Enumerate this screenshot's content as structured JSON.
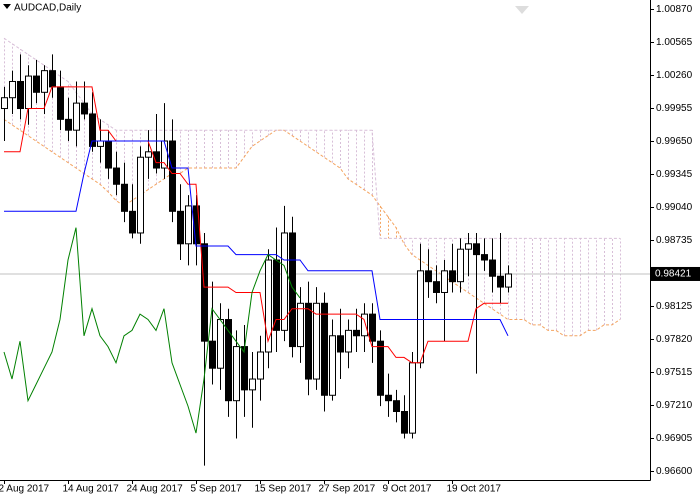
{
  "chart_data": {
    "type": "candlestick",
    "title": "AUDCAD,Daily",
    "ylim": [
      0.96517,
      1.00953
    ],
    "xlim": [
      -0.5,
      80.75
    ],
    "yticks": [
      {
        "value": 1.0087,
        "label": "1.00870"
      },
      {
        "value": 1.00565,
        "label": "1.00565"
      },
      {
        "value": 1.0026,
        "label": "1.00260"
      },
      {
        "value": 0.99955,
        "label": "0.99955"
      },
      {
        "value": 0.9965,
        "label": "0.99650"
      },
      {
        "value": 0.99345,
        "label": "0.99345"
      },
      {
        "value": 0.9904,
        "label": "0.99040"
      },
      {
        "value": 0.98735,
        "label": "0.98735"
      },
      {
        "value": 0.98125,
        "label": "0.98125"
      },
      {
        "value": 0.9782,
        "label": "0.97820"
      },
      {
        "value": 0.97515,
        "label": "0.97515"
      },
      {
        "value": 0.9721,
        "label": "0.97210"
      },
      {
        "value": 0.96905,
        "label": "0.96905"
      },
      {
        "value": 0.966,
        "label": "0.96600"
      }
    ],
    "xticks": [
      {
        "value": 0,
        "label": "2 Aug 2017"
      },
      {
        "value": 8,
        "label": "14 Aug 2017"
      },
      {
        "value": 16,
        "label": "24 Aug 2017"
      },
      {
        "value": 24,
        "label": "5 Sep 2017"
      },
      {
        "value": 32,
        "label": "15 Sep 2017"
      },
      {
        "value": 40,
        "label": "27 Sep 2017"
      },
      {
        "value": 48,
        "label": "9 Oct 2017"
      },
      {
        "value": 56,
        "label": "19 Oct 2017"
      }
    ],
    "current_price": 0.98421,
    "candles": {
      "open": [
        0.9995,
        1.0005,
        1.002,
        0.9995,
        1.0025,
        1.001,
        1.003,
        1.0015,
        0.9985,
        0.9975,
        1.0,
        0.999,
        0.996,
        0.9965,
        0.994,
        0.9925,
        0.99,
        0.988,
        0.995,
        0.9955,
        0.994,
        0.9965,
        0.99,
        0.987,
        0.9905,
        0.987,
        0.978,
        0.9755,
        0.98,
        0.9725,
        0.9775,
        0.9735,
        0.9745,
        0.977,
        0.9855,
        0.979,
        0.988,
        0.9775,
        0.9815,
        0.9745,
        0.9815,
        0.973,
        0.9785,
        0.977,
        0.979,
        0.9785,
        0.9805,
        0.978,
        0.973,
        0.9725,
        0.9715,
        0.9695,
        0.976,
        0.9845,
        0.9835,
        0.9825,
        0.9845,
        0.9835,
        0.9865,
        0.987,
        0.986,
        0.9855,
        0.984,
        0.983
      ],
      "high": [
        1.0015,
        1.003,
        1.0045,
        1.0035,
        1.004,
        1.0035,
        1.0045,
        1.003,
        1.0005,
        1.002,
        1.002,
        1.001,
        0.9985,
        0.9975,
        0.9955,
        0.9945,
        0.9925,
        0.996,
        0.9975,
        0.999,
        1.0,
        0.9985,
        0.9925,
        0.9915,
        0.9915,
        0.988,
        0.9835,
        0.9815,
        0.981,
        0.979,
        0.9795,
        0.977,
        0.9785,
        0.9865,
        0.9885,
        0.9905,
        0.9895,
        0.983,
        0.9835,
        0.983,
        0.9825,
        0.98,
        0.981,
        0.98,
        0.981,
        0.9815,
        0.9815,
        0.979,
        0.975,
        0.9735,
        0.973,
        0.977,
        0.987,
        0.9865,
        0.985,
        0.9855,
        0.987,
        0.9875,
        0.988,
        0.988,
        0.9875,
        0.9875,
        0.988,
        0.985
      ],
      "low": [
        0.9965,
        0.999,
        0.9985,
        0.998,
        1.0,
        0.999,
        1.0005,
        0.9975,
        0.9965,
        0.996,
        0.9985,
        0.9955,
        0.9945,
        0.993,
        0.9915,
        0.989,
        0.9875,
        0.987,
        0.993,
        0.9935,
        0.993,
        0.989,
        0.9855,
        0.985,
        0.985,
        0.9665,
        0.974,
        0.9735,
        0.971,
        0.969,
        0.971,
        0.97,
        0.9725,
        0.9755,
        0.977,
        0.978,
        0.9765,
        0.976,
        0.973,
        0.9735,
        0.9715,
        0.9725,
        0.9745,
        0.9755,
        0.977,
        0.977,
        0.976,
        0.972,
        0.971,
        0.9705,
        0.969,
        0.969,
        0.9755,
        0.982,
        0.9815,
        0.978,
        0.9825,
        0.9825,
        0.984,
        0.975,
        0.9845,
        0.9825,
        0.9815,
        0.9825
      ],
      "close": [
        1.0005,
        1.002,
        0.9995,
        1.0025,
        1.001,
        1.003,
        1.0015,
        0.9985,
        0.9975,
        1.0,
        0.999,
        0.996,
        0.9965,
        0.994,
        0.9925,
        0.99,
        0.988,
        0.995,
        0.9955,
        0.994,
        0.9965,
        0.99,
        0.987,
        0.9905,
        0.987,
        0.978,
        0.9755,
        0.98,
        0.9725,
        0.9775,
        0.9735,
        0.9745,
        0.977,
        0.9855,
        0.979,
        0.988,
        0.9775,
        0.9815,
        0.9745,
        0.9815,
        0.973,
        0.9785,
        0.977,
        0.979,
        0.9785,
        0.9805,
        0.978,
        0.973,
        0.9725,
        0.9715,
        0.9695,
        0.976,
        0.9845,
        0.9835,
        0.9825,
        0.9845,
        0.9835,
        0.9865,
        0.987,
        0.986,
        0.9855,
        0.984,
        0.983,
        0.98421
      ]
    },
    "lines": [
      {
        "color": "#ff0000",
        "values": [
          0.9955,
          0.9955,
          0.9955,
          0.9995,
          0.9995,
          0.9995,
          1.0015,
          1.0015,
          1.0015,
          1.0015,
          1.0015,
          1.0015,
          0.9975,
          0.9975,
          0.9965,
          0.9965,
          0.9965,
          0.9965,
          0.9965,
          0.9945,
          0.9945,
          0.9935,
          0.9935,
          0.9925,
          0.9925,
          0.983,
          0.983,
          0.983,
          0.983,
          0.9825,
          0.9825,
          0.9825,
          0.9825,
          0.978,
          0.98,
          0.98,
          0.981,
          0.981,
          0.981,
          0.9805,
          0.9805,
          0.9805,
          0.9805,
          0.9805,
          0.9805,
          0.98,
          0.9775,
          0.9775,
          0.9775,
          0.9765,
          0.9765,
          0.976,
          0.976,
          0.978,
          0.978,
          0.978,
          0.978,
          0.978,
          0.978,
          0.981,
          0.9815,
          0.9815,
          0.9815,
          0.9815
        ]
      },
      {
        "color": "#0000ff",
        "values": [
          0.99,
          0.99,
          0.99,
          0.99,
          0.99,
          0.99,
          0.99,
          0.99,
          0.99,
          0.99,
          0.9935,
          0.9965,
          0.9965,
          0.9965,
          0.9965,
          0.9965,
          0.9965,
          0.9965,
          0.9965,
          0.9965,
          0.9965,
          0.994,
          0.994,
          0.994,
          0.9868,
          0.9868,
          0.9868,
          0.9868,
          0.9868,
          0.986,
          0.986,
          0.986,
          0.986,
          0.986,
          0.986,
          0.9855,
          0.9855,
          0.9855,
          0.9845,
          0.9845,
          0.9845,
          0.9845,
          0.9845,
          0.9845,
          0.9845,
          0.9845,
          0.9845,
          0.98,
          0.98,
          0.98,
          0.98,
          0.98,
          0.98,
          0.98,
          0.98,
          0.98,
          0.98,
          0.98,
          0.98,
          0.98,
          0.98,
          0.98,
          0.98,
          0.9785
        ]
      },
      {
        "color": "#008000",
        "values": [
          0.977,
          0.9745,
          0.978,
          0.9725,
          0.974,
          0.9755,
          0.977,
          0.98,
          0.9855,
          0.9885,
          0.9785,
          0.981,
          0.9785,
          0.9775,
          0.976,
          0.9785,
          0.979,
          0.9805,
          0.98,
          0.979,
          0.981,
          0.976,
          0.974,
          0.972,
          0.9695,
          0.9745,
          0.981,
          0.98,
          0.979,
          0.978,
          0.977,
          0.9825,
          0.9845,
          0.986,
          0.9855,
          0.985,
          0.983,
          0.982
        ]
      }
    ],
    "cloud": [
      {
        "color": "#f4a460",
        "values": [
          0.9985,
          0.998,
          0.9975,
          0.997,
          0.9965,
          0.996,
          0.9955,
          0.995,
          0.9945,
          0.994,
          0.9935,
          0.993,
          0.9925,
          0.9918,
          0.991,
          0.9905,
          0.991,
          0.9915,
          0.992,
          0.9925,
          0.993,
          0.9935,
          0.9935,
          0.994,
          0.994,
          0.994,
          0.994,
          0.994,
          0.994,
          0.994,
          0.995,
          0.996,
          0.9965,
          0.997,
          0.9975,
          0.9975,
          0.997,
          0.9965,
          0.996,
          0.9955,
          0.995,
          0.9945,
          0.994,
          0.993,
          0.9925,
          0.992,
          0.9915,
          0.9905,
          0.9895,
          0.9885,
          0.987,
          0.986,
          0.9855,
          0.985,
          0.9845,
          0.984,
          0.9835,
          0.983,
          0.9825,
          0.982,
          0.9815,
          0.981,
          0.9805,
          0.98,
          0.98,
          0.98,
          0.9795,
          0.9795,
          0.979,
          0.979,
          0.9785,
          0.9785,
          0.9785,
          0.979,
          0.979,
          0.9795,
          0.9795,
          0.98
        ]
      },
      {
        "color": "#d8bfd8",
        "values": [
          1.006,
          1.0055,
          1.005,
          1.0045,
          1.004,
          1.0035,
          1.003,
          1.0025,
          1.002,
          1.001,
          1.0,
          0.999,
          0.9985,
          0.998,
          0.9975,
          0.9975,
          0.9975,
          0.9975,
          0.9975,
          0.9975,
          0.9975,
          0.9975,
          0.9975,
          0.9975,
          0.9975,
          0.9975,
          0.9975,
          0.9975,
          0.9975,
          0.9975,
          0.9975,
          0.9975,
          0.9975,
          0.9975,
          0.9975,
          0.9975,
          0.9975,
          0.9975,
          0.9975,
          0.9975,
          0.9975,
          0.9975,
          0.9975,
          0.9975,
          0.9975,
          0.9975,
          0.9975,
          0.9875,
          0.9875,
          0.9875,
          0.9875,
          0.9875,
          0.9875,
          0.9875,
          0.9875,
          0.9875,
          0.9875,
          0.9875,
          0.9875,
          0.9875,
          0.9875,
          0.9875,
          0.9875,
          0.9875,
          0.9875,
          0.9875,
          0.9875,
          0.9875,
          0.9875,
          0.9875,
          0.9875,
          0.9875,
          0.9875,
          0.9875,
          0.9875,
          0.9875,
          0.9875,
          0.9875
        ]
      }
    ]
  }
}
